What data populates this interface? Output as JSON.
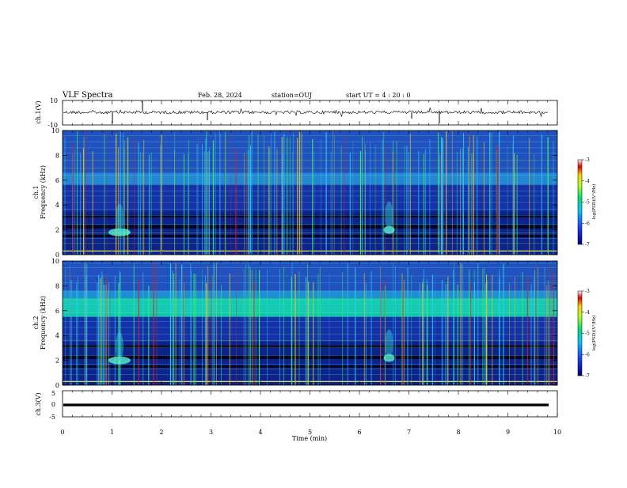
{
  "header": {
    "title": "VLF Spectra",
    "date": "Feb. 28, 2024",
    "station": "station=OUJ",
    "start": "start  UT  =   4  : 20 : 0"
  },
  "chart_data": [
    {
      "type": "line",
      "panel": "ch1-waveform",
      "ylabel": "ch.1(V)",
      "ylim": [
        -10,
        10
      ],
      "yticks": [
        "10",
        "-10"
      ],
      "xlim": [
        0,
        10
      ]
    },
    {
      "type": "heatmap",
      "panel": "ch1-spectrogram",
      "ylabel_top": "ch.1",
      "ylabel": "Frequency (kHz)",
      "ylim": [
        0,
        10
      ],
      "yticks": [
        "0",
        "2",
        "4",
        "6",
        "8",
        "10"
      ],
      "xlim": [
        0,
        10
      ],
      "colorbar": {
        "label": "log(PSD)(V²/Hz)",
        "range": [
          -7,
          -3
        ],
        "ticks": [
          "-3",
          "-4",
          "-5",
          "-6",
          "-7"
        ]
      },
      "features": [
        {
          "time_min": 1.15,
          "freq_khz": 1.8
        },
        {
          "time_min": 6.6,
          "freq_khz": 2.0
        }
      ]
    },
    {
      "type": "heatmap",
      "panel": "ch2-spectrogram",
      "ylabel_top": "ch.2",
      "ylabel": "Frequency (kHz)",
      "ylim": [
        0,
        10
      ],
      "yticks": [
        "0",
        "2",
        "4",
        "6",
        "8",
        "10"
      ],
      "xlim": [
        0,
        10
      ],
      "colorbar": {
        "label": "log(PSD)(V²/Hz)",
        "range": [
          -7,
          -3
        ],
        "ticks": [
          "-3",
          "-4",
          "-5",
          "-6",
          "-7"
        ]
      },
      "features": [
        {
          "time_min": 1.15,
          "freq_khz": 2.0
        },
        {
          "time_min": 6.6,
          "freq_khz": 2.2
        }
      ]
    },
    {
      "type": "line",
      "panel": "ch3-waveform",
      "ylabel": "ch.3(V)",
      "ylim": [
        -5,
        5
      ],
      "yticks": [
        "5",
        "0",
        "-5"
      ],
      "xlim": [
        0,
        10
      ],
      "xlabel": "Time  (min)",
      "xticks": [
        "0",
        "1",
        "2",
        "3",
        "4",
        "5",
        "6",
        "7",
        "8",
        "9",
        "10"
      ]
    }
  ],
  "colors": {
    "background": "#ffffff",
    "axis": "#000000",
    "spectro_low": "#1a2fb0",
    "spectro_mid": "#00c8d8",
    "spectro_high": "#d82a1a"
  }
}
